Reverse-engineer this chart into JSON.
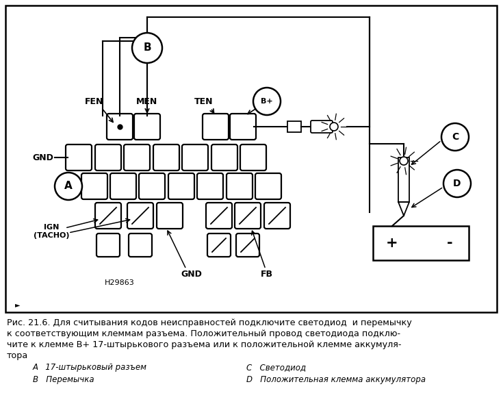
{
  "bg_color": "#ffffff",
  "fig_width": 7.35,
  "fig_height": 6.09,
  "caption_line1": "Рис. 21.6. Для считывания кодов неисправностей подключите светодиод  и перемычку",
  "caption_line2": "к соответствующим клеммам разъема. Положительный провод светодиода подклю-",
  "caption_line3": "чите к клемме В+ 17-штырькового разъема или к положительной клемме аккумуля-",
  "caption_line4": "тора",
  "legend_A": "A   17-штырьковый разъем",
  "legend_B": "B   Перемычка",
  "legend_C": "C   Светодиод",
  "legend_D": "D   Положительная клемма аккумулятора",
  "label_FEN": "FEN",
  "label_MEN": "MEN",
  "label_TEN": "TEN",
  "label_Bplus": "B+",
  "label_GND1": "GND",
  "label_A": "A",
  "label_B": "B",
  "label_C": "C",
  "label_D": "D",
  "label_IGN": "IGN\n(TACHO)",
  "label_GND2": "GND",
  "label_FB": "FB",
  "label_H29863": "H29863"
}
